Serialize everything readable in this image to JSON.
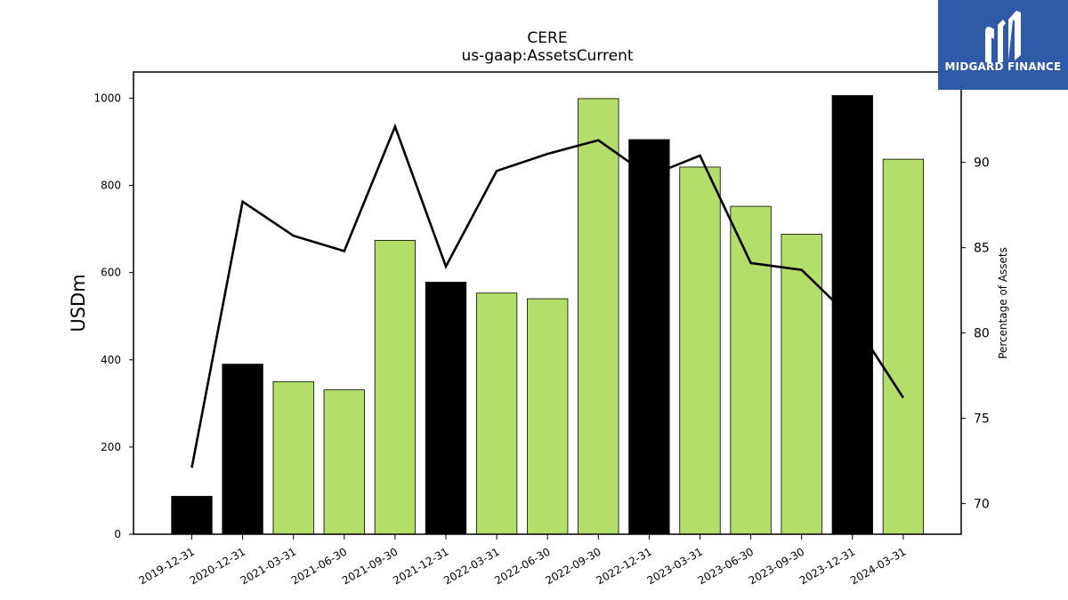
{
  "chart_data": {
    "type": "bar",
    "title": "CERE",
    "subtitle": "us-gaap:AssetsCurrent",
    "ylabel": "USDm",
    "ylabel_right": "Percentage of Assets",
    "ylim": [
      0,
      1060
    ],
    "ylim_right": [
      68.2,
      95.3
    ],
    "yticks": [
      0,
      200,
      400,
      600,
      800,
      1000
    ],
    "yticks_right": [
      70,
      75,
      80,
      85,
      90
    ],
    "categories": [
      "2019-12-31",
      "2020-12-31",
      "2021-03-31",
      "2021-06-30",
      "2021-09-30",
      "2021-12-31",
      "2022-03-31",
      "2022-06-30",
      "2022-09-30",
      "2022-12-31",
      "2023-03-31",
      "2023-06-30",
      "2023-09-30",
      "2023-12-31",
      "2024-03-31"
    ],
    "series": [
      {
        "values": [
          87,
          390,
          350,
          331,
          674,
          578,
          553,
          540,
          999,
          905,
          842,
          752,
          688,
          1006,
          860
        ],
        "colors": [
          "#000000",
          "#000000",
          "#b3de69",
          "#b3de69",
          "#b3de69",
          "#000000",
          "#b3de69",
          "#b3de69",
          "#b3de69",
          "#000000",
          "#b3de69",
          "#b3de69",
          "#b3de69",
          "#000000",
          "#b3de69"
        ]
      },
      {
        "type": "line",
        "axis": "right",
        "color": "#000000",
        "values": [
          72.1,
          87.7,
          85.7,
          84.8,
          92.1,
          83.9,
          89.5,
          90.5,
          91.3,
          89.2,
          90.4,
          84.1,
          83.7,
          80.8,
          76.2
        ]
      }
    ],
    "grid": false,
    "legend": "none"
  },
  "logo": {
    "text": "MIDGARD FINANCE",
    "background": "#2f5aa8"
  }
}
